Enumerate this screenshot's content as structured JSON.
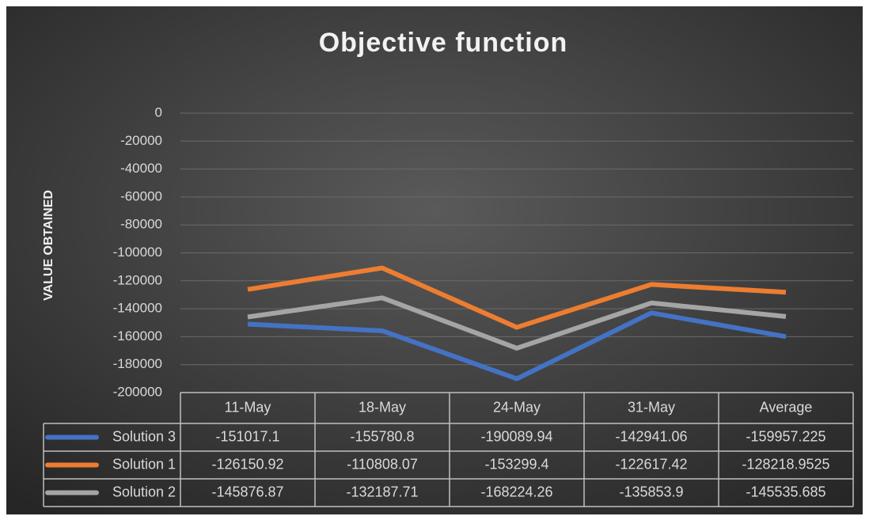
{
  "chart_data": {
    "type": "line",
    "title": "Objective function",
    "y_label": "VALUE OBTAINED",
    "categories": [
      "11-May",
      "18-May",
      "24-May",
      "31-May",
      "Average"
    ],
    "series": [
      {
        "name": "Solution 3",
        "color": "#4472c4",
        "values": [
          -151017.1,
          -155780.8,
          -190089.94,
          -142941.06,
          -159957.225
        ]
      },
      {
        "name": "Solution 1",
        "color": "#ed7d31",
        "values": [
          -126150.92,
          -110808.07,
          -153299.4,
          -122617.42,
          -128218.9525
        ]
      },
      {
        "name": "Solution 2",
        "color": "#a5a5a5",
        "values": [
          -145876.87,
          -132187.71,
          -168224.26,
          -135853.9,
          -145535.685
        ]
      }
    ],
    "ylim": [
      -200000,
      0
    ],
    "yticks": [
      0,
      -20000,
      -40000,
      -60000,
      -80000,
      -100000,
      -120000,
      -140000,
      -160000,
      -180000,
      -200000
    ],
    "grid": true,
    "data_table": true
  }
}
